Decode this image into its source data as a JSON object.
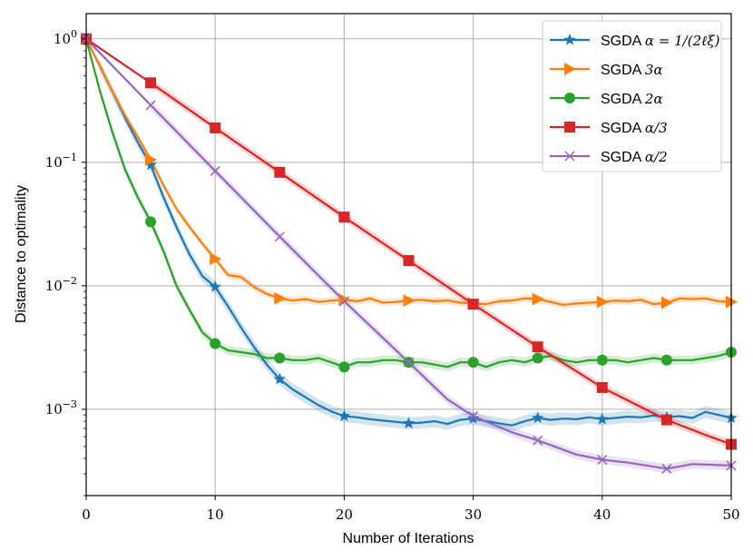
{
  "chart_data": {
    "type": "line",
    "xlabel": "Number of Iterations",
    "ylabel": "Distance to optimality",
    "xlim": [
      0,
      50
    ],
    "ylim": [
      0.0002,
      1.6
    ],
    "yscale": "log",
    "grid": true,
    "legend_position": "top-right",
    "x_ticks": [
      0,
      10,
      20,
      30,
      40,
      50
    ],
    "x_tick_labels": [
      "0",
      "10",
      "20",
      "30",
      "40",
      "50"
    ],
    "y_ticks": [
      1,
      0.1,
      0.01,
      0.001
    ],
    "y_tick_labels": [
      "10^0",
      "10^-1",
      "10^-2",
      "10^-3"
    ],
    "series": [
      {
        "name": "SGDA α = 1/(2ℓ_ξ)",
        "label_main": "SGDA",
        "label_math": "α = 1/(2ℓξ)",
        "color": "#1f77b4",
        "marker": "star",
        "x": [
          0,
          1,
          2,
          3,
          4,
          5,
          6,
          7,
          8,
          9,
          10,
          11,
          12,
          13,
          14,
          15,
          16,
          17,
          18,
          19,
          20,
          21,
          22,
          23,
          24,
          25,
          26,
          27,
          28,
          29,
          30,
          31,
          32,
          33,
          34,
          35,
          36,
          37,
          38,
          39,
          40,
          41,
          42,
          43,
          44,
          45,
          46,
          47,
          48,
          49,
          50
        ],
        "values": [
          1.0,
          0.62,
          0.38,
          0.23,
          0.145,
          0.095,
          0.052,
          0.03,
          0.018,
          0.012,
          0.0098,
          0.0068,
          0.0046,
          0.0032,
          0.0023,
          0.00175,
          0.00145,
          0.00125,
          0.00108,
          0.00096,
          0.00088,
          0.00086,
          0.00083,
          0.00081,
          0.00079,
          0.00077,
          0.00078,
          0.0008,
          0.00076,
          0.00082,
          0.00084,
          0.0008,
          0.00077,
          0.00074,
          0.0008,
          0.00085,
          0.00082,
          0.00084,
          0.00083,
          0.00086,
          0.00083,
          0.00085,
          0.00087,
          0.00086,
          0.00089,
          0.00086,
          0.00088,
          0.00085,
          0.00095,
          0.0009,
          0.00085
        ],
        "band": 0.12
      },
      {
        "name": "SGDA 3α",
        "label_main": "SGDA",
        "label_math": "3α",
        "color": "#ff7f0e",
        "marker": "triangle-right",
        "x": [
          0,
          1,
          2,
          3,
          4,
          5,
          6,
          7,
          8,
          9,
          10,
          11,
          12,
          13,
          14,
          15,
          16,
          17,
          18,
          19,
          20,
          21,
          22,
          23,
          24,
          25,
          26,
          27,
          28,
          29,
          30,
          31,
          32,
          33,
          34,
          35,
          36,
          37,
          38,
          39,
          40,
          41,
          42,
          43,
          44,
          45,
          46,
          47,
          48,
          49,
          50
        ],
        "values": [
          1.0,
          0.62,
          0.38,
          0.24,
          0.16,
          0.105,
          0.065,
          0.042,
          0.03,
          0.022,
          0.0165,
          0.0122,
          0.0118,
          0.0098,
          0.0086,
          0.0079,
          0.0076,
          0.0078,
          0.0074,
          0.0076,
          0.0077,
          0.0075,
          0.0079,
          0.0073,
          0.0074,
          0.0076,
          0.0077,
          0.0075,
          0.0076,
          0.0073,
          0.0072,
          0.0071,
          0.0075,
          0.0076,
          0.0079,
          0.0078,
          0.0074,
          0.007,
          0.0072,
          0.0073,
          0.0074,
          0.0076,
          0.0075,
          0.0077,
          0.0071,
          0.0073,
          0.0079,
          0.0078,
          0.0079,
          0.0075,
          0.0074
        ],
        "band": 0.07
      },
      {
        "name": "SGDA 2α",
        "label_main": "SGDA",
        "label_math": "2α",
        "color": "#2ca02c",
        "marker": "circle",
        "x": [
          0,
          1,
          2,
          3,
          4,
          5,
          6,
          7,
          8,
          9,
          10,
          11,
          12,
          13,
          14,
          15,
          16,
          17,
          18,
          19,
          20,
          21,
          22,
          23,
          24,
          25,
          26,
          27,
          28,
          29,
          30,
          31,
          32,
          33,
          34,
          35,
          36,
          37,
          38,
          39,
          40,
          41,
          42,
          43,
          44,
          45,
          46,
          47,
          48,
          49,
          50
        ],
        "values": [
          1.0,
          0.4,
          0.18,
          0.088,
          0.052,
          0.033,
          0.019,
          0.01,
          0.0064,
          0.0042,
          0.0034,
          0.003,
          0.0029,
          0.0028,
          0.0026,
          0.0026,
          0.0025,
          0.0025,
          0.0026,
          0.0024,
          0.0022,
          0.0024,
          0.0024,
          0.0025,
          0.0025,
          0.0024,
          0.0024,
          0.0023,
          0.0022,
          0.0024,
          0.0024,
          0.0022,
          0.0024,
          0.0025,
          0.0024,
          0.0026,
          0.0027,
          0.0025,
          0.0024,
          0.0025,
          0.0025,
          0.0025,
          0.0024,
          0.0025,
          0.0026,
          0.0025,
          0.0025,
          0.0025,
          0.0026,
          0.0027,
          0.0029
        ],
        "band": 0.09
      },
      {
        "name": "SGDA α/3",
        "label_main": "SGDA",
        "label_math": "α/3",
        "color": "#d62728",
        "marker": "square",
        "x": [
          0,
          5,
          10,
          15,
          20,
          25,
          30,
          35,
          40,
          45,
          48,
          50
        ],
        "values": [
          1.0,
          0.44,
          0.19,
          0.083,
          0.036,
          0.016,
          0.0071,
          0.0032,
          0.0015,
          0.00082,
          0.00062,
          0.00052
        ],
        "band": 0.08
      },
      {
        "name": "SGDA α/2",
        "label_main": "SGDA",
        "label_math": "α/2",
        "color": "#9467bd",
        "marker": "x",
        "x": [
          0,
          5,
          10,
          15,
          20,
          25,
          28,
          30,
          33,
          35,
          38,
          40,
          42,
          45,
          47,
          50
        ],
        "values": [
          1.0,
          0.29,
          0.085,
          0.025,
          0.0075,
          0.0024,
          0.0012,
          0.00088,
          0.00065,
          0.00056,
          0.00043,
          0.00039,
          0.00037,
          0.00033,
          0.00036,
          0.00035
        ],
        "band": 0.09
      }
    ]
  }
}
